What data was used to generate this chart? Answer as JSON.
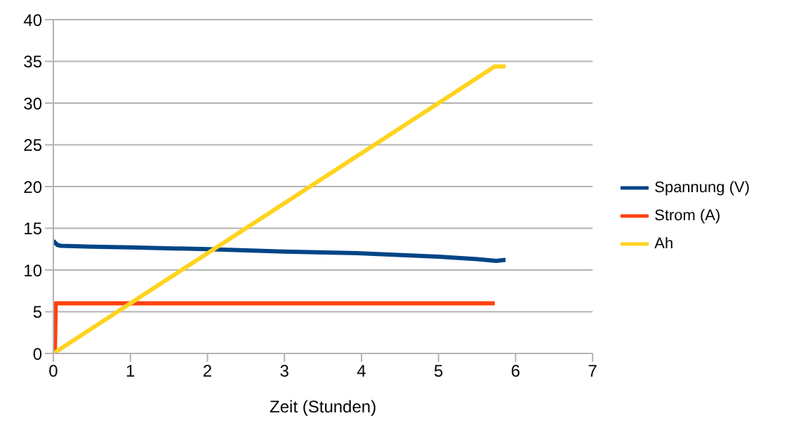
{
  "chart_data": {
    "type": "line",
    "xlabel": "Zeit (Stunden)",
    "xlim": [
      0,
      7
    ],
    "xticks": [
      0,
      1,
      2,
      3,
      4,
      5,
      6,
      7
    ],
    "ylim": [
      0,
      40
    ],
    "yticks": [
      0,
      5,
      10,
      15,
      20,
      25,
      30,
      35,
      40
    ],
    "grid": "y",
    "legend": "right",
    "marker": "none",
    "line_style": "solid",
    "series": [
      {
        "name": "Spannung (V)",
        "color": "#004586",
        "x": [
          0,
          0.05,
          0.1,
          0.5,
          1,
          2,
          3,
          4,
          5,
          5.5,
          5.75,
          5.85,
          5.87
        ],
        "values": [
          13.5,
          13,
          12.9,
          12.8,
          12.7,
          12.5,
          12.2,
          12,
          11.6,
          11.3,
          11.1,
          11.2,
          11.2
        ]
      },
      {
        "name": "Strom (A)",
        "color": "#ff420e",
        "x": [
          0,
          0.02,
          0.03,
          5.73
        ],
        "values": [
          0,
          0,
          6,
          6
        ]
      },
      {
        "name": "Ah",
        "color": "#ffd320",
        "x": [
          0,
          1,
          2,
          3,
          4,
          5,
          5.73,
          5.87
        ],
        "values": [
          0,
          6,
          12,
          18,
          24,
          30,
          34.4,
          34.4
        ]
      }
    ]
  }
}
